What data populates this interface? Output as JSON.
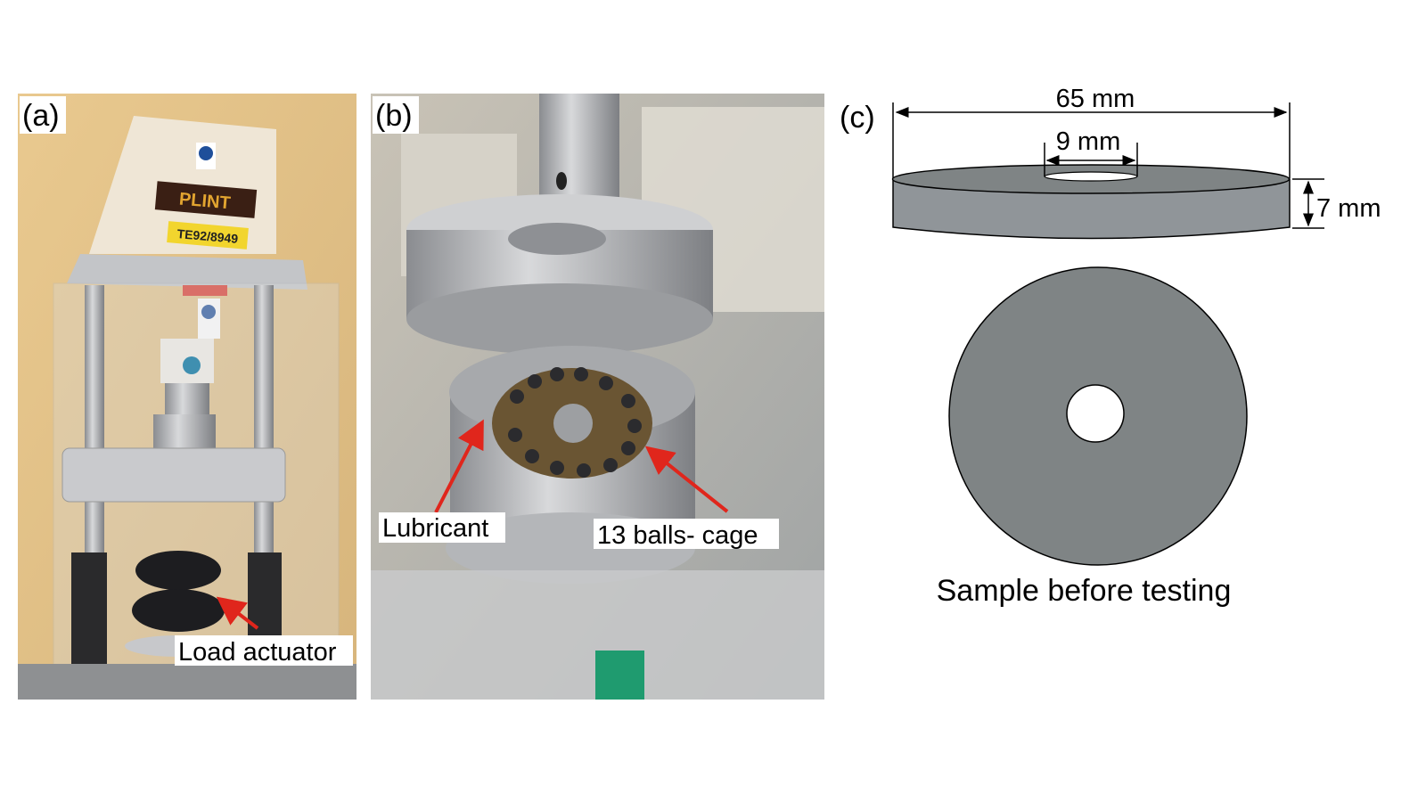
{
  "panel_a": {
    "label": "(a)",
    "brand_plate": "PLINT",
    "serial_label": "TE92/8949",
    "annotation": "Load actuator"
  },
  "panel_b": {
    "label": "(b)",
    "annotation_lubricant": "Lubricant",
    "annotation_cage": "13 balls- cage"
  },
  "panel_c": {
    "label": "(c)",
    "outer_diameter": "65 mm",
    "inner_diameter": "9 mm",
    "thickness": "7 mm",
    "caption": "Sample before testing"
  },
  "colors": {
    "arrow": "#e0261c",
    "disc_fill": "#7f8485",
    "disc_side": "#909599"
  }
}
